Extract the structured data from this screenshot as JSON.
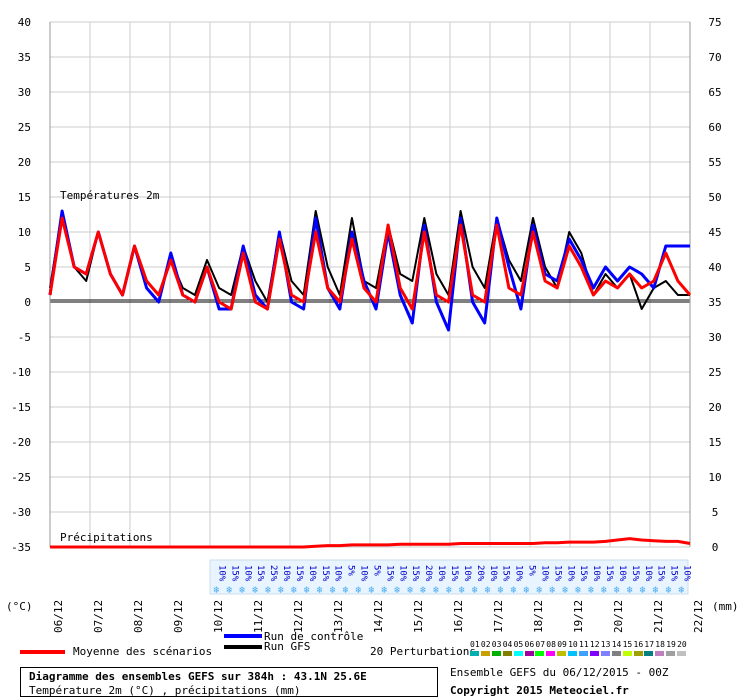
{
  "chart_data": {
    "type": "line",
    "title": "Diagramme des ensembles GEFS sur 384h : 43.1N 25.6E",
    "subtitle": "Température 2m (°C) , précipitations (mm)",
    "left_axis": {
      "unit": "(°C)",
      "ticks": [
        40,
        35,
        30,
        25,
        20,
        15,
        10,
        5,
        0,
        -5,
        -10,
        -15,
        -20,
        -25,
        -30,
        -35
      ]
    },
    "right_axis": {
      "unit": "(mm)",
      "ticks": [
        75,
        70,
        65,
        60,
        55,
        50,
        45,
        40,
        35,
        30,
        25,
        20,
        15,
        10,
        5,
        0
      ]
    },
    "x_ticks": [
      "06/12",
      "07/12",
      "08/12",
      "09/12",
      "10/12",
      "11/12",
      "12/12",
      "13/12",
      "14/12",
      "15/12",
      "16/12",
      "17/12",
      "18/12",
      "19/12",
      "20/12",
      "21/12",
      "22/12"
    ],
    "panel_labels": {
      "temp": "Températures 2m",
      "precip": "Précipitations"
    },
    "prob_labels": [
      "10%",
      "15%",
      "10%",
      "15%",
      "25%",
      "10%",
      "15%",
      "10%",
      "15%",
      "10%",
      "5%",
      "10%",
      "5%",
      "15%",
      "10%",
      "15%",
      "20%",
      "10%",
      "15%",
      "10%",
      "20%",
      "10%",
      "15%",
      "10%",
      "5%",
      "10%",
      "15%",
      "10%",
      "15%",
      "10%",
      "15%",
      "10%",
      "15%",
      "10%",
      "15%",
      "15%",
      "10%"
    ],
    "series": [
      {
        "name": "Moyenne des scénarios",
        "color": "#ff0000",
        "temp": [
          1,
          12,
          5,
          4,
          10,
          4,
          1,
          8,
          3,
          1,
          6,
          1,
          0,
          5,
          0,
          -1,
          7,
          0,
          -1,
          9,
          1,
          0,
          10,
          2,
          0,
          9,
          2,
          0,
          11,
          2,
          -1,
          10,
          1,
          0,
          11,
          1,
          0,
          11,
          2,
          1,
          10,
          3,
          2,
          8,
          5,
          1,
          3,
          2,
          4,
          2,
          3,
          7,
          3,
          1
        ]
      },
      {
        "name": "Run de contrôle",
        "color": "#0000ff",
        "temp": [
          1,
          13,
          5,
          4,
          10,
          4,
          1,
          8,
          2,
          0,
          7,
          1,
          0,
          5,
          -1,
          -1,
          8,
          1,
          -1,
          10,
          0,
          -1,
          12,
          2,
          -1,
          10,
          3,
          -1,
          10,
          1,
          -3,
          11,
          0,
          -4,
          12,
          0,
          -3,
          12,
          5,
          -1,
          11,
          4,
          3,
          9,
          6,
          2,
          5,
          3,
          5,
          4,
          2,
          8,
          8,
          8
        ]
      },
      {
        "name": "Run GFS",
        "color": "#000000",
        "temp": [
          2,
          13,
          5,
          3,
          10,
          4,
          1,
          8,
          3,
          1,
          6,
          2,
          1,
          6,
          2,
          1,
          8,
          3,
          0,
          10,
          3,
          1,
          13,
          5,
          1,
          12,
          3,
          2,
          11,
          4,
          3,
          12,
          4,
          1,
          13,
          5,
          2,
          12,
          6,
          3,
          12,
          5,
          2,
          10,
          7,
          1,
          4,
          2,
          4,
          -1,
          2,
          3,
          1,
          1
        ]
      }
    ],
    "precip_mean": [
      0,
      0,
      0,
      0,
      0,
      0,
      0,
      0,
      0,
      0,
      0,
      0,
      0,
      0,
      0,
      0,
      0,
      0,
      0,
      0,
      0,
      0,
      0.1,
      0.2,
      0.2,
      0.3,
      0.3,
      0.3,
      0.3,
      0.4,
      0.4,
      0.4,
      0.4,
      0.4,
      0.5,
      0.5,
      0.5,
      0.5,
      0.5,
      0.5,
      0.5,
      0.6,
      0.6,
      0.7,
      0.7,
      0.7,
      0.8,
      1,
      1.2,
      1,
      0.9,
      0.8,
      0.8,
      0.5
    ],
    "members_label": "20 Perturbations",
    "member_ids": [
      "01",
      "02",
      "03",
      "04",
      "05",
      "06",
      "07",
      "08",
      "09",
      "10",
      "11",
      "12",
      "13",
      "14",
      "15",
      "16",
      "17",
      "18",
      "19",
      "20"
    ],
    "member_colors": [
      "#00b0b0",
      "#c8a000",
      "#00b000",
      "#808000",
      "#00ffff",
      "#a000a0",
      "#00ff00",
      "#ff00ff",
      "#c0c000",
      "#00c0ff",
      "#40a0ff",
      "#8000ff",
      "#8080ff",
      "#808080",
      "#c0ff00",
      "#a0a000",
      "#008080",
      "#c080c0",
      "#a0a0a0",
      "#c0c0c0"
    ]
  },
  "legend": {
    "mean_label": "Moyenne des scénarios",
    "control_label": "Run de contrôle",
    "gfs_label": "Run GFS",
    "perturbations_label": "20 Perturbations",
    "box_line1": "Diagramme des ensembles GEFS sur 384h : 43.1N 25.6E",
    "box_line2": "Température 2m (°C) , précipitations (mm)",
    "ensemble_info": "Ensemble GEFS du 06/12/2015 - 00Z",
    "copyright": "Copyright 2015 Meteociel.fr"
  }
}
